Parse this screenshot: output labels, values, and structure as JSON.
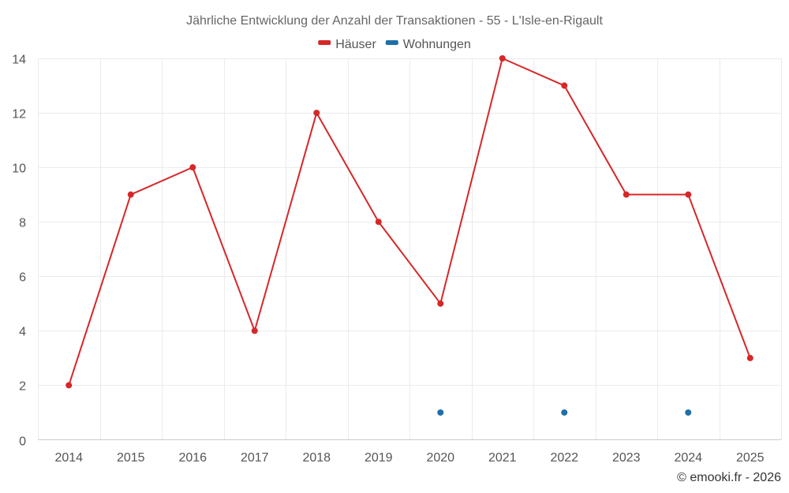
{
  "chart_data": {
    "type": "line",
    "title": "Jährliche Entwicklung der Anzahl der Transaktionen - 55 - L'Isle-en-Rigault",
    "categories": [
      "2014",
      "2015",
      "2016",
      "2017",
      "2018",
      "2019",
      "2020",
      "2021",
      "2022",
      "2023",
      "2024",
      "2025"
    ],
    "ylim": [
      0,
      14
    ],
    "yticks": [
      0,
      2,
      4,
      6,
      8,
      10,
      12,
      14
    ],
    "grid": true,
    "legend_position": "top-center",
    "series": [
      {
        "name": "Häuser",
        "color": "#d62728",
        "values": [
          2,
          9,
          10,
          4,
          12,
          8,
          5,
          14,
          13,
          9,
          9,
          3
        ]
      },
      {
        "name": "Wohnungen",
        "color": "#1f6fa8",
        "values": [
          null,
          null,
          null,
          null,
          null,
          null,
          1,
          null,
          1,
          null,
          1,
          null
        ]
      }
    ]
  },
  "credit": "© emooki.fr - 2026"
}
